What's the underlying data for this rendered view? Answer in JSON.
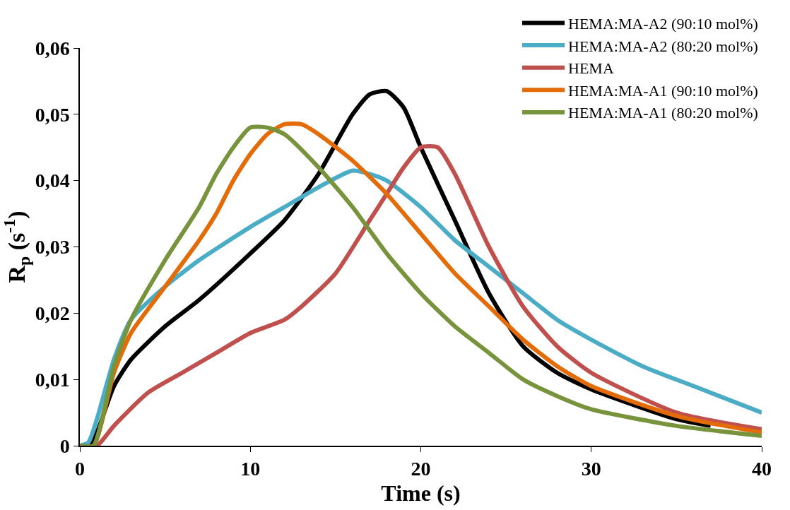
{
  "chart_data": {
    "type": "line",
    "xlabel": "Time (s)",
    "ylabel": "R$_{p}$ (s$^{-1}$)",
    "xlim": [
      0,
      40
    ],
    "xticks": [
      0,
      10,
      20,
      30,
      40
    ],
    "ylim": [
      0,
      0.06
    ],
    "yticks": [
      {
        "value": 0,
        "label": "0"
      },
      {
        "value": 0.01,
        "label": "0,01"
      },
      {
        "value": 0.02,
        "label": "0,02"
      },
      {
        "value": 0.03,
        "label": "0,03"
      },
      {
        "value": 0.04,
        "label": "0,04"
      },
      {
        "value": 0.05,
        "label": "0,05"
      },
      {
        "value": 0.06,
        "label": "0,06"
      }
    ],
    "legend": "top right",
    "marker": "none",
    "line_style": "solid",
    "series": [
      {
        "name": "HEMA:MA-A2 (90:10 mol%)",
        "color": "#000000",
        "x": [
          0,
          0.5,
          1,
          2,
          3,
          5,
          7,
          10,
          12,
          14,
          16,
          17,
          18,
          19,
          20,
          22,
          24,
          26,
          28,
          30,
          35,
          37
        ],
        "values": [
          0,
          0,
          0.002,
          0.009,
          0.013,
          0.018,
          0.022,
          0.029,
          0.034,
          0.041,
          0.05,
          0.053,
          0.0535,
          0.051,
          0.045,
          0.034,
          0.023,
          0.015,
          0.011,
          0.0085,
          0.004,
          0.003
        ]
      },
      {
        "name": "HEMA:MA-A2 (80:20 mol%)",
        "color": "#4bacc6",
        "x": [
          0,
          0.5,
          1,
          2,
          3,
          5,
          7,
          10,
          12,
          14,
          16,
          17,
          18,
          20,
          22,
          24,
          26,
          28,
          30,
          33,
          36,
          40
        ],
        "values": [
          0,
          0.0005,
          0.004,
          0.013,
          0.019,
          0.024,
          0.028,
          0.033,
          0.036,
          0.039,
          0.0415,
          0.041,
          0.04,
          0.036,
          0.031,
          0.027,
          0.023,
          0.019,
          0.016,
          0.012,
          0.009,
          0.005
        ]
      },
      {
        "name": "HEMA",
        "color": "#c0504d",
        "x": [
          0,
          1,
          2,
          4,
          6,
          8,
          10,
          12,
          13,
          15,
          17,
          18,
          19,
          20,
          21,
          22,
          24,
          26,
          28,
          30,
          35,
          40
        ],
        "values": [
          0,
          0,
          0.003,
          0.008,
          0.011,
          0.014,
          0.017,
          0.019,
          0.021,
          0.026,
          0.034,
          0.038,
          0.042,
          0.045,
          0.045,
          0.041,
          0.03,
          0.021,
          0.015,
          0.011,
          0.005,
          0.0025
        ]
      },
      {
        "name": "HEMA:MA-A1 (90:10 mol%)",
        "color": "#e36c09",
        "x": [
          0,
          0.8,
          2,
          3,
          5,
          7,
          8,
          9,
          10,
          11,
          12,
          13,
          14,
          16,
          18,
          20,
          22,
          24,
          26,
          28,
          30,
          35,
          40
        ],
        "values": [
          0,
          0,
          0.011,
          0.017,
          0.024,
          0.031,
          0.035,
          0.04,
          0.044,
          0.047,
          0.0485,
          0.0485,
          0.047,
          0.043,
          0.038,
          0.032,
          0.026,
          0.021,
          0.016,
          0.012,
          0.009,
          0.0045,
          0.002
        ]
      },
      {
        "name": "HEMA:MA-A1 (80:20 mol%)",
        "color": "#77933c",
        "x": [
          0,
          0.8,
          2,
          3,
          5,
          7,
          8,
          9,
          10,
          11,
          12,
          14,
          16,
          18,
          20,
          22,
          24,
          26,
          28,
          30,
          35,
          40
        ],
        "values": [
          0,
          0,
          0.012,
          0.019,
          0.028,
          0.036,
          0.041,
          0.045,
          0.048,
          0.048,
          0.047,
          0.042,
          0.036,
          0.029,
          0.023,
          0.018,
          0.014,
          0.01,
          0.0075,
          0.0055,
          0.003,
          0.0015
        ]
      }
    ]
  }
}
